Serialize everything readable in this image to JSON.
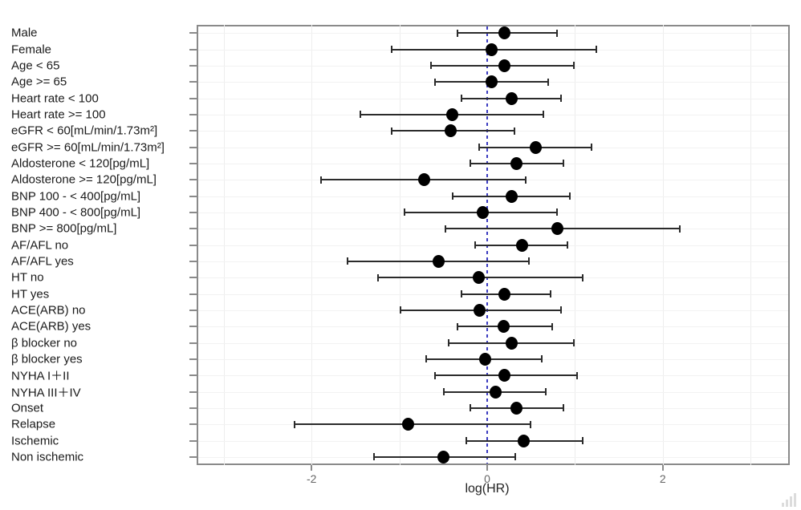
{
  "figure": {
    "xlabel": "log(HR)",
    "background_color": "#ffffff",
    "panel_border_color": "#8a8a8a",
    "reference_line_color": "#3b3bc0",
    "point_color": "#000000",
    "ci_color": "#2b2b2b",
    "tick_label_color": "#666666",
    "label_color": "#1a1a1a"
  },
  "chart_data": {
    "type": "scatter",
    "subtype": "forest-plot",
    "title": "",
    "xlabel": "log(HR)",
    "ylabel": "",
    "xlim": [
      -3.3,
      3.45
    ],
    "x_ticks": [
      -2,
      0,
      2
    ],
    "x_tick_labels": [
      "-2",
      "0",
      "2"
    ],
    "reference_line_x": 0,
    "grid": "faint",
    "legend": "none",
    "rows": [
      {
        "label": "Male",
        "estimate": 0.2,
        "ci_low": -0.35,
        "ci_high": 0.8
      },
      {
        "label": "Female",
        "estimate": 0.05,
        "ci_low": -1.1,
        "ci_high": 1.25
      },
      {
        "label": "Age < 65",
        "estimate": 0.2,
        "ci_low": -0.65,
        "ci_high": 1.0
      },
      {
        "label": "Age >= 65",
        "estimate": 0.05,
        "ci_low": -0.6,
        "ci_high": 0.7
      },
      {
        "label": "Heart rate < 100",
        "estimate": 0.28,
        "ci_low": -0.3,
        "ci_high": 0.85
      },
      {
        "label": "Heart rate >= 100",
        "estimate": -0.4,
        "ci_low": -1.45,
        "ci_high": 0.65
      },
      {
        "label": "eGFR < 60[mL/min/1.73m²]",
        "estimate": -0.42,
        "ci_low": -1.1,
        "ci_high": 0.32
      },
      {
        "label": "eGFR >= 60[mL/min/1.73m²]",
        "estimate": 0.55,
        "ci_low": -0.1,
        "ci_high": 1.2
      },
      {
        "label": "Aldosterone < 120[pg/mL]",
        "estimate": 0.33,
        "ci_low": -0.2,
        "ci_high": 0.88
      },
      {
        "label": "Aldosterone >= 120[pg/mL]",
        "estimate": -0.72,
        "ci_low": -1.9,
        "ci_high": 0.45
      },
      {
        "label": "BNP 100 - < 400[pg/mL]",
        "estimate": 0.28,
        "ci_low": -0.4,
        "ci_high": 0.95
      },
      {
        "label": "BNP 400 - < 800[pg/mL]",
        "estimate": -0.05,
        "ci_low": -0.95,
        "ci_high": 0.8
      },
      {
        "label": "BNP >= 800[pg/mL]",
        "estimate": 0.8,
        "ci_low": -0.48,
        "ci_high": 2.2
      },
      {
        "label": "AF/AFL no",
        "estimate": 0.4,
        "ci_low": -0.15,
        "ci_high": 0.92
      },
      {
        "label": "AF/AFL yes",
        "estimate": -0.55,
        "ci_low": -1.6,
        "ci_high": 0.48
      },
      {
        "label": "HT no",
        "estimate": -0.1,
        "ci_low": -1.25,
        "ci_high": 1.1
      },
      {
        "label": "HT yes",
        "estimate": 0.2,
        "ci_low": -0.3,
        "ci_high": 0.73
      },
      {
        "label": "ACE(ARB) no",
        "estimate": -0.09,
        "ci_low": -1.0,
        "ci_high": 0.85
      },
      {
        "label": "ACE(ARB) yes",
        "estimate": 0.19,
        "ci_low": -0.35,
        "ci_high": 0.75
      },
      {
        "label": "β blocker no",
        "estimate": 0.28,
        "ci_low": -0.45,
        "ci_high": 1.0
      },
      {
        "label": "β blocker yes",
        "estimate": -0.02,
        "ci_low": -0.7,
        "ci_high": 0.63
      },
      {
        "label": "NYHA I＋II",
        "estimate": 0.2,
        "ci_low": -0.6,
        "ci_high": 1.03
      },
      {
        "label": "NYHA III＋IV",
        "estimate": 0.1,
        "ci_low": -0.5,
        "ci_high": 0.68
      },
      {
        "label": "Onset",
        "estimate": 0.33,
        "ci_low": -0.2,
        "ci_high": 0.88
      },
      {
        "label": "Relapse",
        "estimate": -0.9,
        "ci_low": -2.2,
        "ci_high": 0.5
      },
      {
        "label": "Ischemic",
        "estimate": 0.42,
        "ci_low": -0.25,
        "ci_high": 1.1
      },
      {
        "label": "Non ischemic",
        "estimate": -0.5,
        "ci_low": -1.3,
        "ci_high": 0.33
      }
    ]
  }
}
